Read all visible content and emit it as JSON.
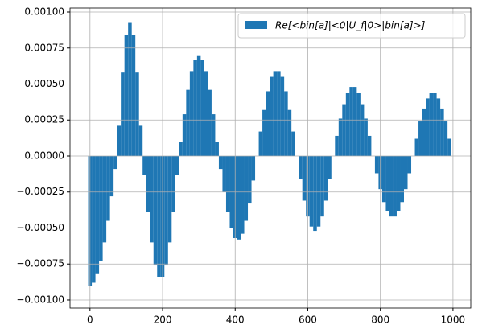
{
  "chart_data": {
    "type": "bar",
    "legend_label": "Re[<bin[a]|<0|U_f|0>|bin[a]>]",
    "color": "#1f77b4",
    "grid": true,
    "legend": "upper right",
    "x": [
      0,
      10,
      20,
      30,
      40,
      50,
      60,
      70,
      80,
      90,
      100,
      110,
      120,
      130,
      140,
      150,
      160,
      170,
      180,
      190,
      200,
      210,
      220,
      230,
      240,
      250,
      260,
      270,
      280,
      290,
      300,
      310,
      320,
      330,
      340,
      350,
      360,
      370,
      380,
      390,
      400,
      410,
      420,
      430,
      440,
      450,
      460,
      470,
      480,
      490,
      500,
      510,
      520,
      530,
      540,
      550,
      560,
      570,
      580,
      590,
      600,
      610,
      620,
      630,
      640,
      650,
      660,
      670,
      680,
      690,
      700,
      710,
      720,
      730,
      740,
      750,
      760,
      770,
      780,
      790,
      800,
      810,
      820,
      830,
      840,
      850,
      860,
      870,
      880,
      890,
      900,
      910,
      920,
      930,
      940,
      950,
      960,
      970,
      980,
      990
    ],
    "values": [
      -0.0009,
      -0.00088,
      -0.00082,
      -0.00073,
      -0.0006,
      -0.00045,
      -0.00028,
      -9e-05,
      0.00021,
      0.00058,
      0.00084,
      0.00093,
      0.00084,
      0.00058,
      0.00021,
      -0.00013,
      -0.00039,
      -0.0006,
      -0.00076,
      -0.00084,
      -0.00084,
      -0.00076,
      -0.0006,
      -0.00039,
      -0.00013,
      0.0001,
      0.00029,
      0.00046,
      0.00059,
      0.00067,
      0.0007,
      0.00067,
      0.00059,
      0.00046,
      0.00029,
      0.0001,
      -9e-05,
      -0.00025,
      -0.00039,
      -0.0005,
      -0.00057,
      -0.00058,
      -0.00054,
      -0.00045,
      -0.00033,
      -0.00017,
      0,
      0.00017,
      0.00032,
      0.00045,
      0.00055,
      0.00059,
      0.00059,
      0.00055,
      0.00045,
      0.00032,
      0.00017,
      0,
      -0.00016,
      -0.00031,
      -0.00042,
      -0.00049,
      -0.00052,
      -0.00049,
      -0.00042,
      -0.00031,
      -0.00016,
      0,
      0.00014,
      0.00026,
      0.00036,
      0.00044,
      0.00048,
      0.00048,
      0.00044,
      0.00036,
      0.00026,
      0.00014,
      0,
      -0.00012,
      -0.00023,
      -0.00032,
      -0.00038,
      -0.00042,
      -0.00042,
      -0.00038,
      -0.00032,
      -0.00023,
      -0.00012,
      0,
      0.00012,
      0.00024,
      0.00033,
      0.0004,
      0.00044,
      0.00044,
      0.0004,
      0.00033,
      0.00024,
      0.00012
    ],
    "bar_width": 10,
    "xlim": [
      -55,
      1049
    ],
    "xticks": [
      0,
      200,
      400,
      600,
      800,
      1000
    ],
    "ylim": [
      -0.001056,
      0.001028
    ],
    "yticks": [
      {
        "value": -0.001,
        "label": "−0.00100"
      },
      {
        "value": -0.00075,
        "label": "−0.00075"
      },
      {
        "value": -0.0005,
        "label": "−0.00050"
      },
      {
        "value": -0.00025,
        "label": "−0.00025"
      },
      {
        "value": 0,
        "label": "0.00000"
      },
      {
        "value": 0.00025,
        "label": "0.00025"
      },
      {
        "value": 0.0005,
        "label": "0.00050"
      },
      {
        "value": 0.00075,
        "label": "0.00075"
      },
      {
        "value": 0.001,
        "label": "0.00100"
      }
    ]
  }
}
